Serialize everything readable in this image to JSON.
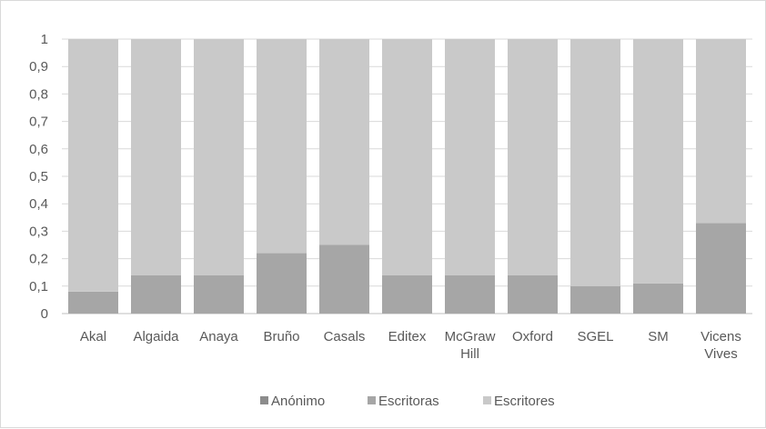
{
  "chart_data": {
    "type": "bar",
    "stacked": true,
    "categories": [
      [
        "Akal"
      ],
      [
        "Algaida"
      ],
      [
        "Anaya"
      ],
      [
        "Bruño"
      ],
      [
        "Casals"
      ],
      [
        "Editex"
      ],
      [
        "McGraw",
        "Hill"
      ],
      [
        "Oxford"
      ],
      [
        "SGEL"
      ],
      [
        "SM"
      ],
      [
        "Vicens",
        "Vives"
      ]
    ],
    "series": [
      {
        "name": "Anónimo",
        "color": "#8c8c8c",
        "values": [
          0,
          0,
          0,
          0,
          0,
          0,
          0,
          0,
          0,
          0,
          0
        ]
      },
      {
        "name": "Escritoras",
        "color": "#a6a6a6",
        "values": [
          0.08,
          0.14,
          0.14,
          0.22,
          0.25,
          0.14,
          0.14,
          0.14,
          0.1,
          0.11,
          0.33
        ]
      },
      {
        "name": "Escritores",
        "color": "#c9c9c9",
        "values": [
          0.92,
          0.86,
          0.86,
          0.78,
          0.75,
          0.86,
          0.86,
          0.86,
          0.9,
          0.89,
          0.67
        ]
      }
    ],
    "y_ticks": [
      "0",
      "0,1",
      "0,2",
      "0,3",
      "0,4",
      "0,5",
      "0,6",
      "0,7",
      "0,8",
      "0,9",
      "1"
    ],
    "ylim": [
      0,
      1
    ],
    "grid": true,
    "legend_position": "bottom",
    "title": "",
    "xlabel": "",
    "ylabel": ""
  }
}
